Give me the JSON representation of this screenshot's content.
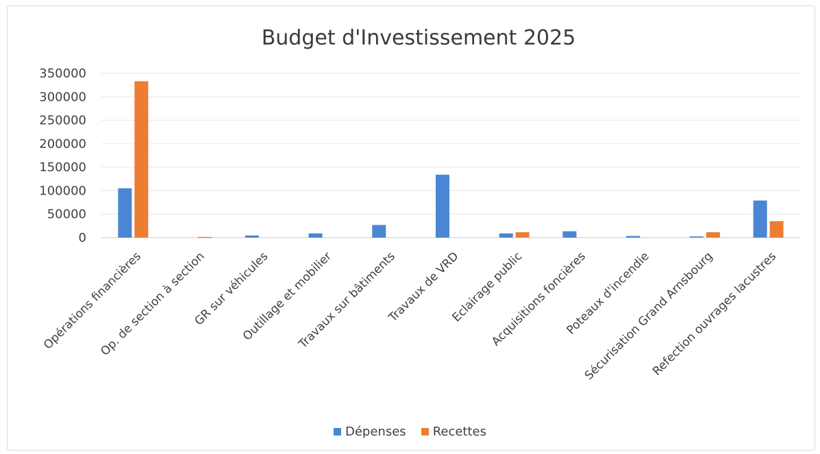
{
  "chart_data": {
    "type": "bar",
    "title": "Budget d'Investissement 2025",
    "categories": [
      "Opérations financières",
      "Op. de section à section",
      "GR sur véhicules",
      "Outillage et mobilier",
      "Travaux sur bâtiments",
      "Travaux de VRD",
      "Eclairage public",
      "Acquisitions foncières",
      "Poteaux d'incendie",
      "Sécurisation Grand Arnsbourg",
      "Refection ouvrages lacustres"
    ],
    "series": [
      {
        "name": "Dépenses",
        "color": "#4a86d4",
        "values": [
          105000,
          0,
          4500,
          9000,
          27000,
          134000,
          9000,
          13500,
          3500,
          2500,
          79000
        ]
      },
      {
        "name": "Recettes",
        "color": "#ed7d31",
        "values": [
          333000,
          1500,
          0,
          0,
          0,
          0,
          11500,
          0,
          0,
          11500,
          35000
        ]
      }
    ],
    "yticks": [
      "0",
      "50000",
      "100000",
      "150000",
      "200000",
      "250000",
      "300000",
      "350000"
    ],
    "ylim": [
      0,
      350000
    ],
    "xlabel": "",
    "ylabel": "",
    "grid": true,
    "legend_position": "bottom"
  }
}
